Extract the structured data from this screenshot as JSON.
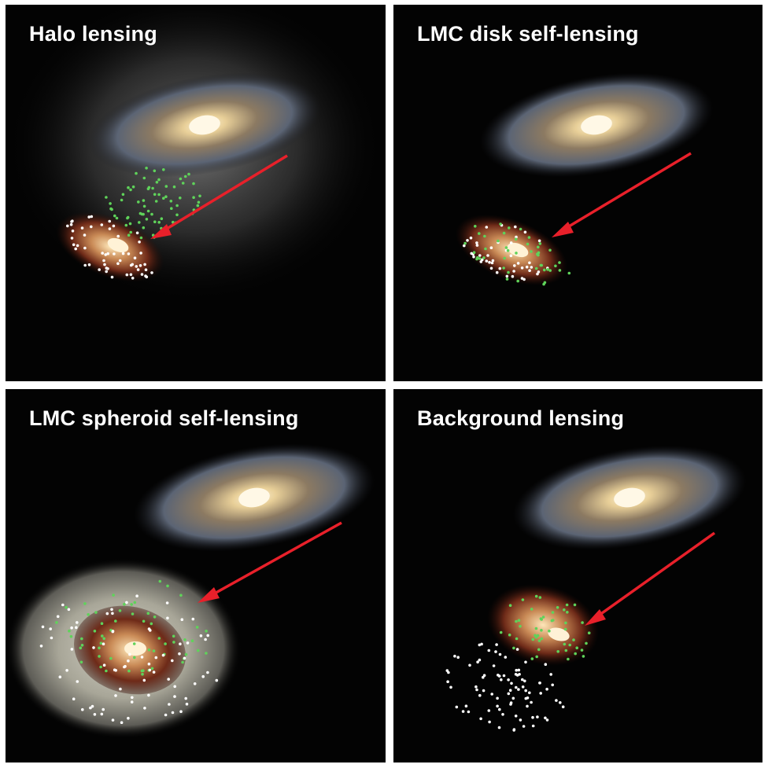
{
  "panels": [
    {
      "title": "Halo lensing",
      "lens_population": "halo"
    },
    {
      "title": "LMC disk self-lensing",
      "lens_population": "disk"
    },
    {
      "title": "LMC spheroid self-lensing",
      "lens_population": "spheroid"
    },
    {
      "title": "Background lensing",
      "lens_population": "background"
    }
  ],
  "colors": {
    "arrow": "#e8202a",
    "lens_dots": "#5fd35a",
    "source_dots": "#ffffff",
    "divider": "#ffffff",
    "background": "#030303"
  }
}
